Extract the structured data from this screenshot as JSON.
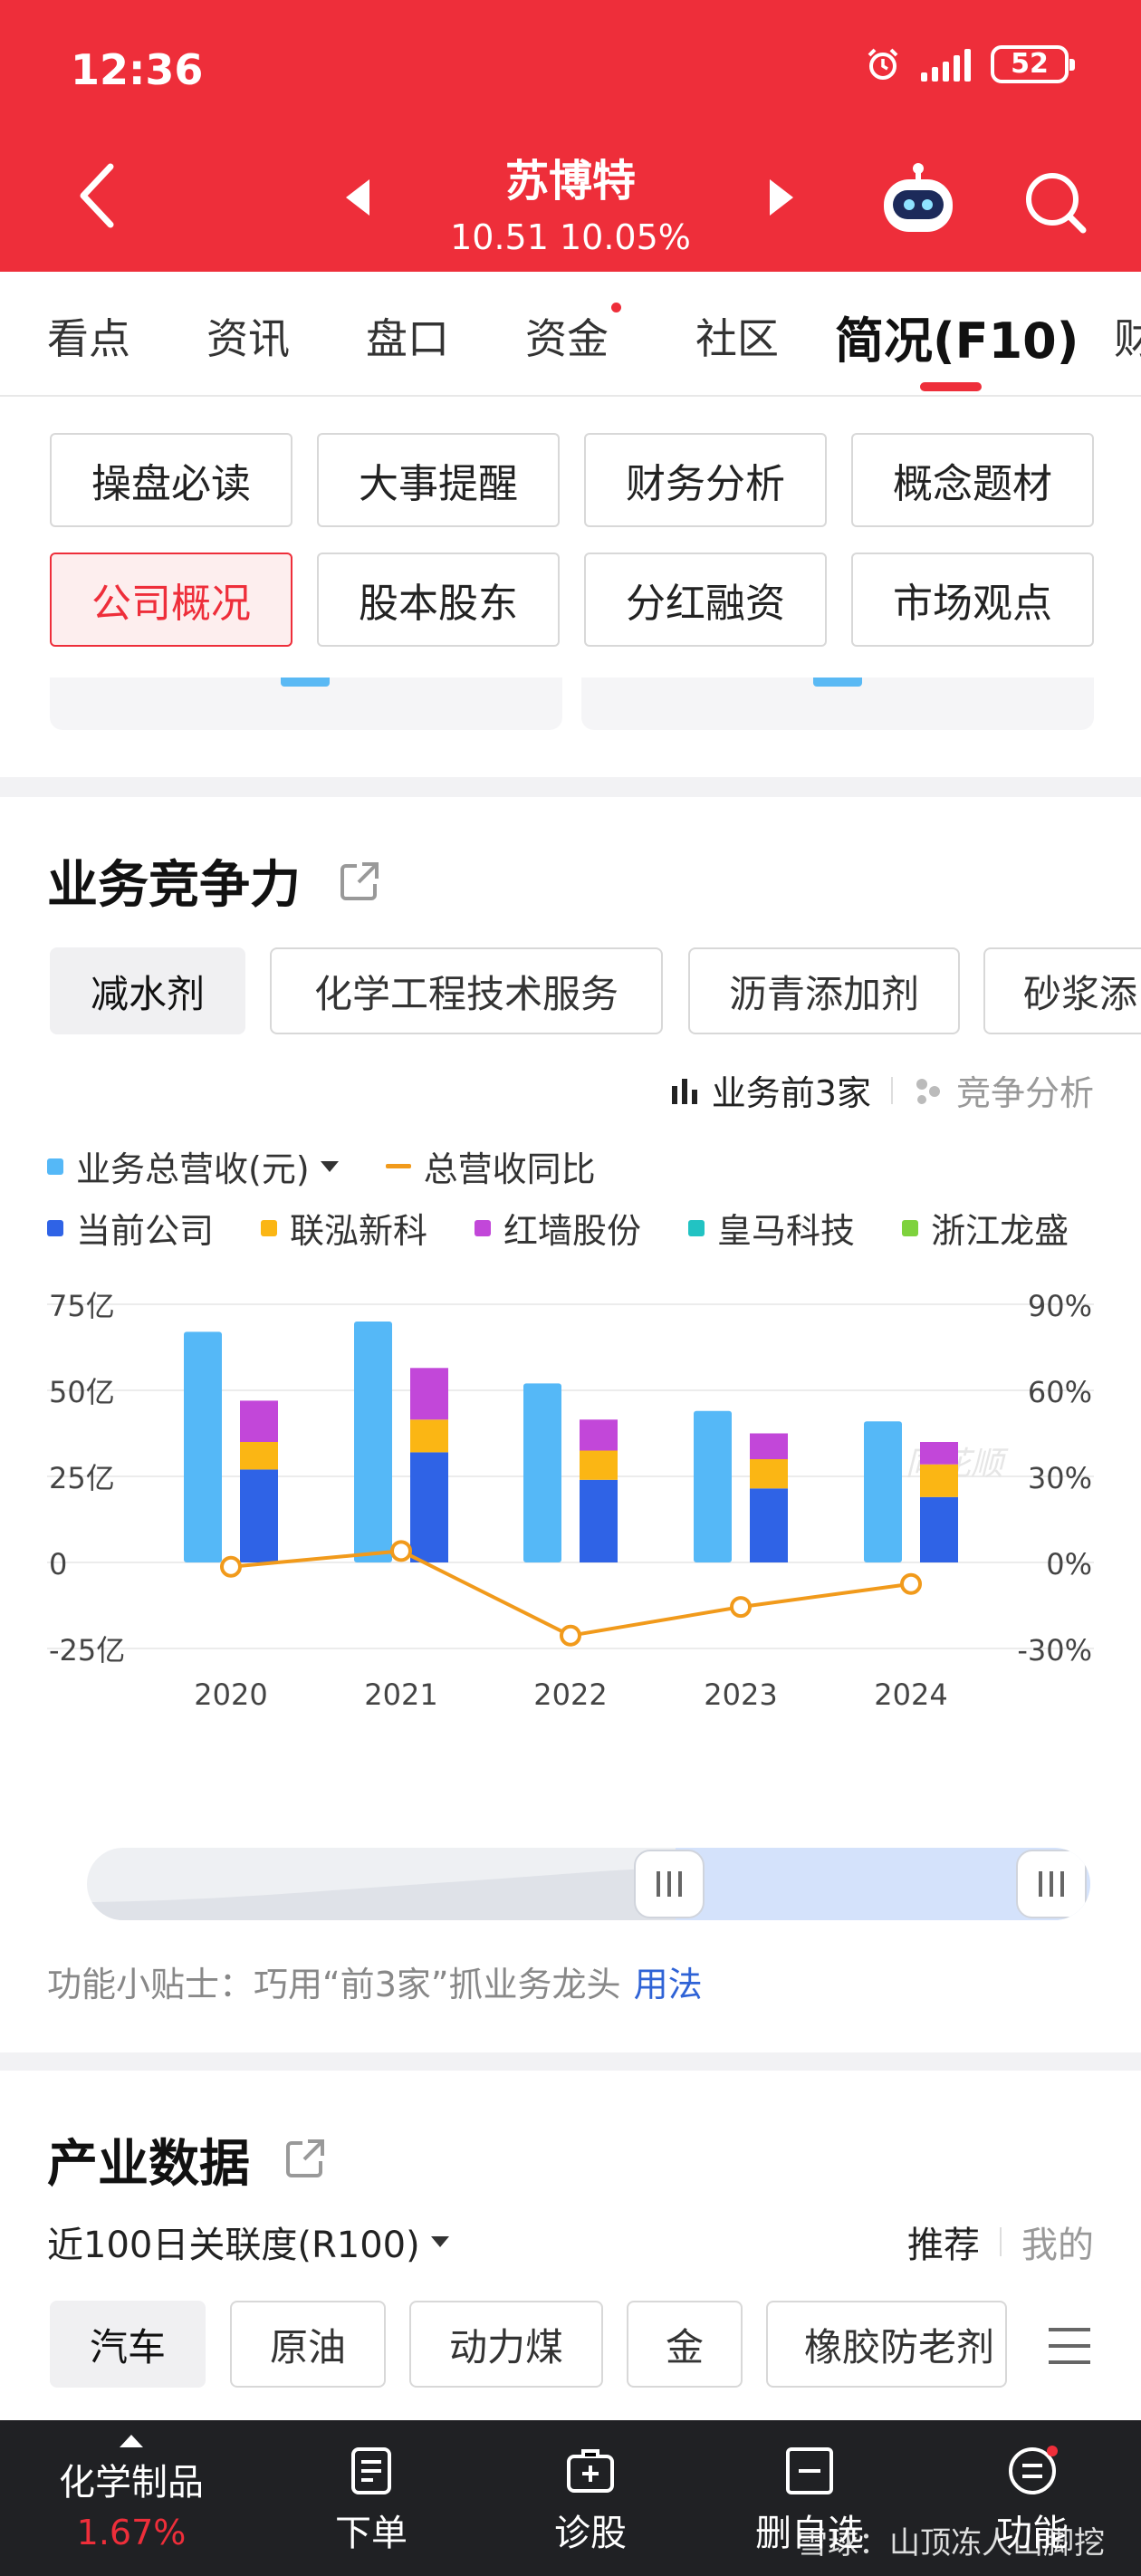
{
  "status_bar": {
    "time": "12:36",
    "battery": "52"
  },
  "header": {
    "stock_name": "苏博特",
    "price_line": "10.51 10.05%"
  },
  "tabs": [
    {
      "label": "看点",
      "active": false,
      "dot": false
    },
    {
      "label": "资讯",
      "active": false,
      "dot": false
    },
    {
      "label": "盘口",
      "active": false,
      "dot": false
    },
    {
      "label": "资金",
      "active": false,
      "dot": true
    },
    {
      "label": "社区",
      "active": false,
      "dot": false
    },
    {
      "label": "简况(F10)",
      "active": true,
      "dot": false
    },
    {
      "label": "财",
      "active": false,
      "dot": false
    }
  ],
  "quick_buttons": [
    {
      "label": "操盘必读",
      "active": false
    },
    {
      "label": "大事提醒",
      "active": false
    },
    {
      "label": "财务分析",
      "active": false
    },
    {
      "label": "概念题材",
      "active": false
    },
    {
      "label": "公司概况",
      "active": true
    },
    {
      "label": "股本股东",
      "active": false
    },
    {
      "label": "分红融资",
      "active": false
    },
    {
      "label": "市场观点",
      "active": false
    }
  ],
  "business": {
    "title": "业务竞争力",
    "chips": [
      {
        "label": "减水剂",
        "active": true
      },
      {
        "label": "化学工程技术服务",
        "active": false
      },
      {
        "label": "沥青添加剂",
        "active": false
      },
      {
        "label": "砂浆添",
        "active": false
      }
    ],
    "toggle_active": "业务前3家",
    "toggle_inactive": "竞争分析",
    "legend_revenue": "业务总营收(元)",
    "legend_yoy": "总营收同比",
    "legend_companies": [
      {
        "name": "当前公司",
        "color": "#2f63e6"
      },
      {
        "name": "联泓新科",
        "color": "#fbb614"
      },
      {
        "name": "红墙股份",
        "color": "#c247d9"
      },
      {
        "name": "皇马科技",
        "color": "#22c3c3"
      },
      {
        "name": "浙江龙盛",
        "color": "#7ed23d"
      }
    ],
    "tip_text": "功能小贴士：巧用“前3家”抓业务龙头",
    "tip_link": "用法"
  },
  "chart_data": {
    "type": "bar",
    "categories": [
      "2020",
      "2021",
      "2022",
      "2023",
      "2024"
    ],
    "left_axis": {
      "ticks": [
        "75亿",
        "50亿",
        "25亿",
        "0",
        "-25亿"
      ],
      "range": [
        -25,
        75
      ],
      "unit": "亿"
    },
    "right_axis": {
      "ticks": [
        "90%",
        "60%",
        "30%",
        "0%",
        "-30%"
      ],
      "range": [
        -30,
        90
      ]
    },
    "series": [
      {
        "name": "业务总营收(元)",
        "color": "#55b8f7",
        "values": [
          67,
          70,
          52,
          44,
          41
        ]
      },
      {
        "name": "当前公司",
        "color": "#2f63e6",
        "stack": "top3",
        "values": [
          27,
          32,
          24,
          21.5,
          19
        ]
      },
      {
        "name": "联泓新科",
        "color": "#fbb614",
        "stack": "top3",
        "values": [
          8,
          9.5,
          8.5,
          8.5,
          9.5
        ]
      },
      {
        "name": "红墙股份",
        "color": "#c247d9",
        "stack": "top3",
        "values": [
          12,
          15,
          9,
          7.5,
          6.5
        ]
      },
      {
        "name": "总营收同比",
        "type": "line",
        "color": "#f19a1b",
        "axis": "right",
        "values": [
          -1.5,
          4,
          -25.5,
          -15.5,
          -7.5
        ]
      }
    ],
    "grid": true
  },
  "industry": {
    "title": "产业数据",
    "subtitle": "近100日关联度(R100)",
    "right_active": "推荐",
    "right_inactive": "我的",
    "chips": [
      {
        "label": "汽车",
        "active": true
      },
      {
        "label": "原油",
        "active": false
      },
      {
        "label": "动力煤",
        "active": false
      },
      {
        "label": "金",
        "active": false
      },
      {
        "label": "橡胶防老剂",
        "active": false
      }
    ]
  },
  "bottom_bar": {
    "sector_name": "化学制品",
    "sector_change": "1.67%",
    "items": [
      "下单",
      "诊股",
      "删自选",
      "功能"
    ]
  },
  "watermark": "雪球：山顶冻人山脚挖",
  "chart_watermark": "同花顺",
  "colors": {
    "accent": "#ee2e3a",
    "link": "#2f63d6"
  }
}
